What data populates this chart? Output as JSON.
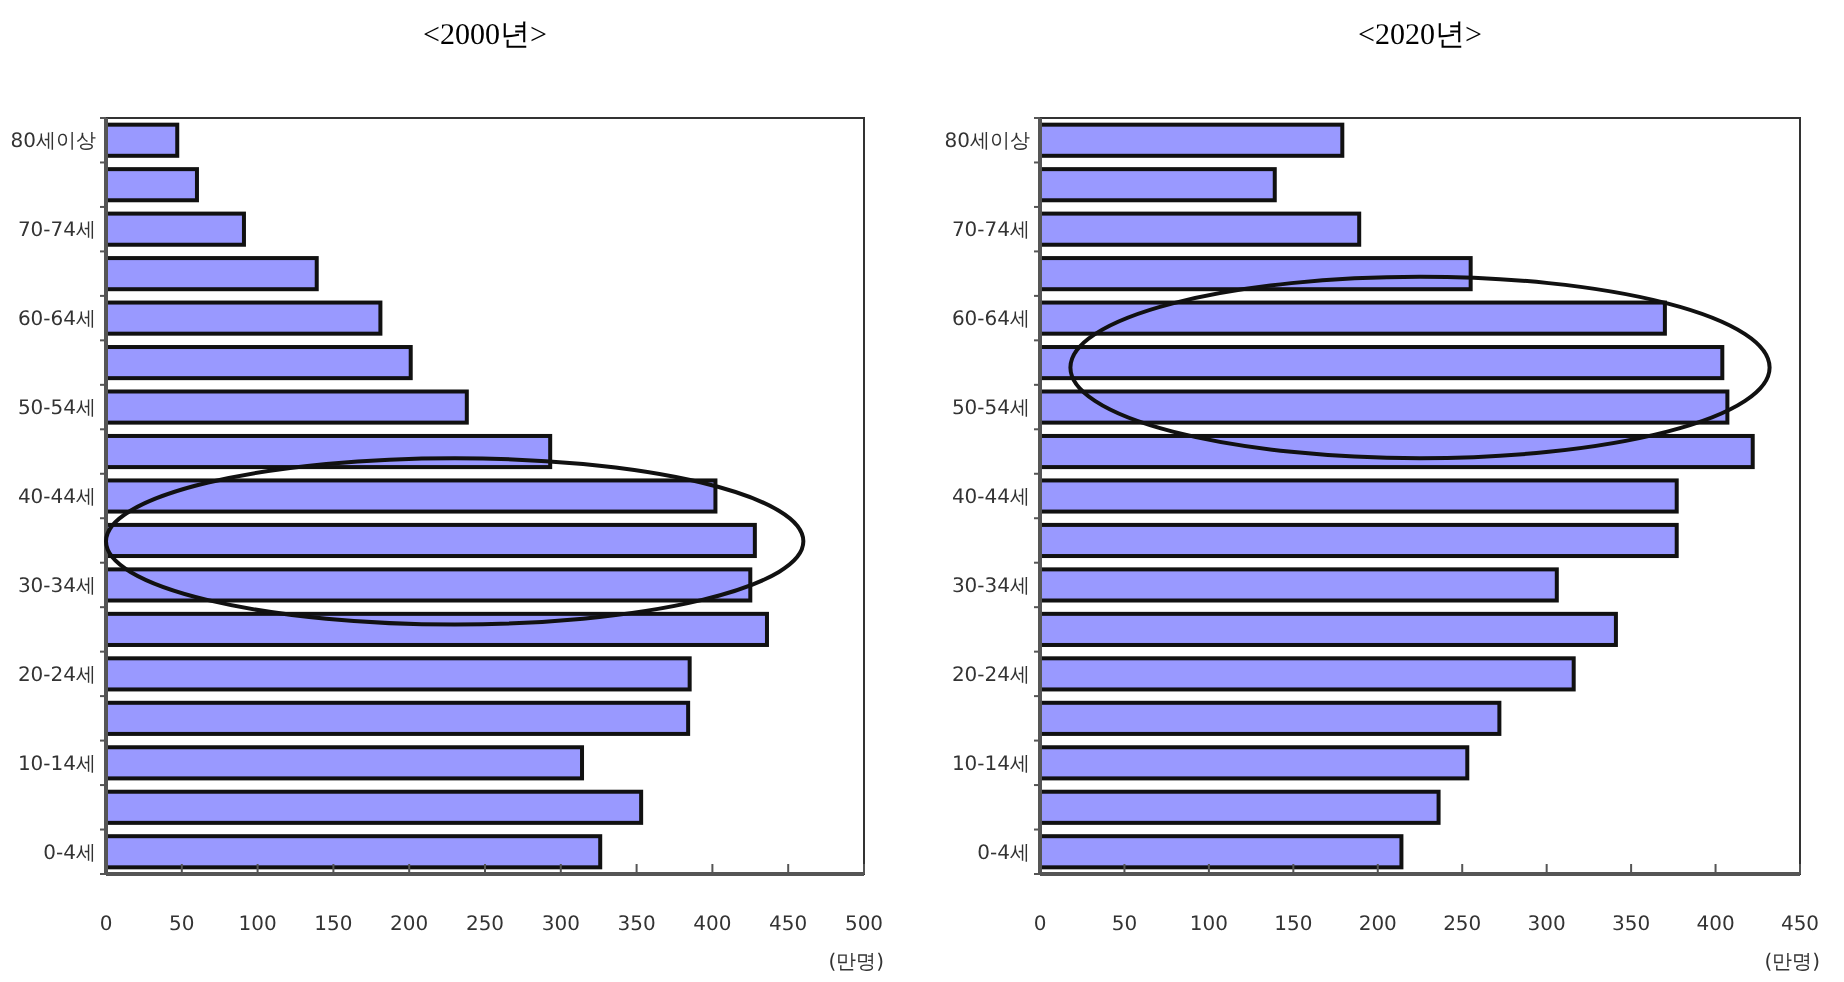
{
  "chart_data": [
    {
      "type": "bar",
      "orientation": "horizontal",
      "title": "<2000년>",
      "xlabel": "(만명)",
      "color": "#9999ff",
      "categories": [
        "80세이상",
        null,
        "70-74세",
        null,
        "60-64세",
        null,
        "50-54세",
        null,
        "40-44세",
        null,
        "30-34세",
        null,
        "20-24세",
        null,
        "10-14세",
        null,
        "0-4세"
      ],
      "values": [
        47,
        60,
        91,
        139,
        181,
        201,
        238,
        293,
        402,
        428,
        425,
        436,
        385,
        384,
        314,
        353,
        326
      ],
      "xlim": [
        0,
        500
      ],
      "xticks": [
        0,
        50,
        100,
        150,
        200,
        250,
        300,
        350,
        400,
        450,
        500
      ]
    },
    {
      "type": "bar",
      "orientation": "horizontal",
      "title": "<2020년>",
      "xlabel": "(만명)",
      "color": "#9999ff",
      "categories": [
        "80세이상",
        null,
        "70-74세",
        null,
        "60-64세",
        null,
        "50-54세",
        null,
        "40-44세",
        null,
        "30-34세",
        null,
        "20-24세",
        null,
        "10-14세",
        null,
        "0-4세"
      ],
      "values": [
        179,
        139,
        189,
        255,
        370,
        404,
        407,
        422,
        377,
        377,
        306,
        341,
        316,
        272,
        253,
        236,
        214
      ],
      "xlim": [
        0,
        450
      ],
      "xticks": [
        0,
        50,
        100,
        150,
        200,
        250,
        300,
        350,
        400,
        450
      ]
    }
  ]
}
